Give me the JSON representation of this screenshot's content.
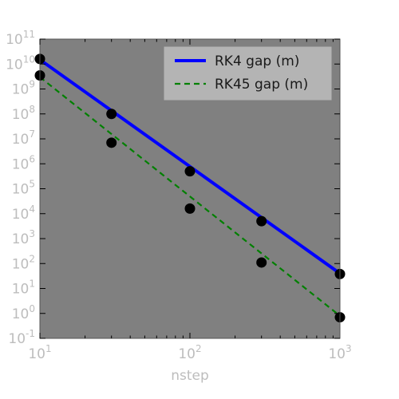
{
  "chart_data": {
    "type": "line",
    "title": "",
    "xlabel": "nstep",
    "ylabel": "",
    "xscale": "log",
    "yscale": "log",
    "xlim": [
      10,
      1000
    ],
    "ylim": [
      0.1,
      100000000000
    ],
    "grid": false,
    "legend": "top-right",
    "plot_background": "#808080",
    "x_ticks": [
      {
        "value": 10,
        "base": "10",
        "exp": "1"
      },
      {
        "value": 100,
        "base": "10",
        "exp": "2"
      },
      {
        "value": 1000,
        "base": "10",
        "exp": "3"
      }
    ],
    "y_ticks": [
      {
        "value": 0.1,
        "base": "10",
        "exp": "-1"
      },
      {
        "value": 1,
        "base": "10",
        "exp": "0"
      },
      {
        "value": 10,
        "base": "10",
        "exp": "1"
      },
      {
        "value": 100,
        "base": "10",
        "exp": "2"
      },
      {
        "value": 1000,
        "base": "10",
        "exp": "3"
      },
      {
        "value": 10000,
        "base": "10",
        "exp": "4"
      },
      {
        "value": 100000,
        "base": "10",
        "exp": "5"
      },
      {
        "value": 1000000,
        "base": "10",
        "exp": "6"
      },
      {
        "value": 10000000,
        "base": "10",
        "exp": "7"
      },
      {
        "value": 100000000,
        "base": "10",
        "exp": "8"
      },
      {
        "value": 1000000000,
        "base": "10",
        "exp": "9"
      },
      {
        "value": 10000000000,
        "base": "10",
        "exp": "10"
      },
      {
        "value": 100000000000,
        "base": "10",
        "exp": "11"
      }
    ],
    "series": [
      {
        "name": "RK4 gap (m)",
        "color": "#0000ff",
        "dash": "solid",
        "line_x": [
          10,
          1000
        ],
        "line_y": [
          15000000000,
          40
        ],
        "points_x": [
          10,
          30,
          100,
          300,
          1000
        ],
        "points_y": [
          16000000000,
          100000000,
          500000,
          5000,
          38
        ]
      },
      {
        "name": "RK45 gap (m)",
        "color": "#008000",
        "dash": "dashed",
        "line_x": [
          10,
          1000
        ],
        "line_y": [
          3000000000,
          0.8
        ],
        "points_x": [
          10,
          30,
          100,
          300,
          1000
        ],
        "points_y": [
          3500000000,
          7000000,
          16000,
          110,
          0.7
        ]
      }
    ]
  }
}
